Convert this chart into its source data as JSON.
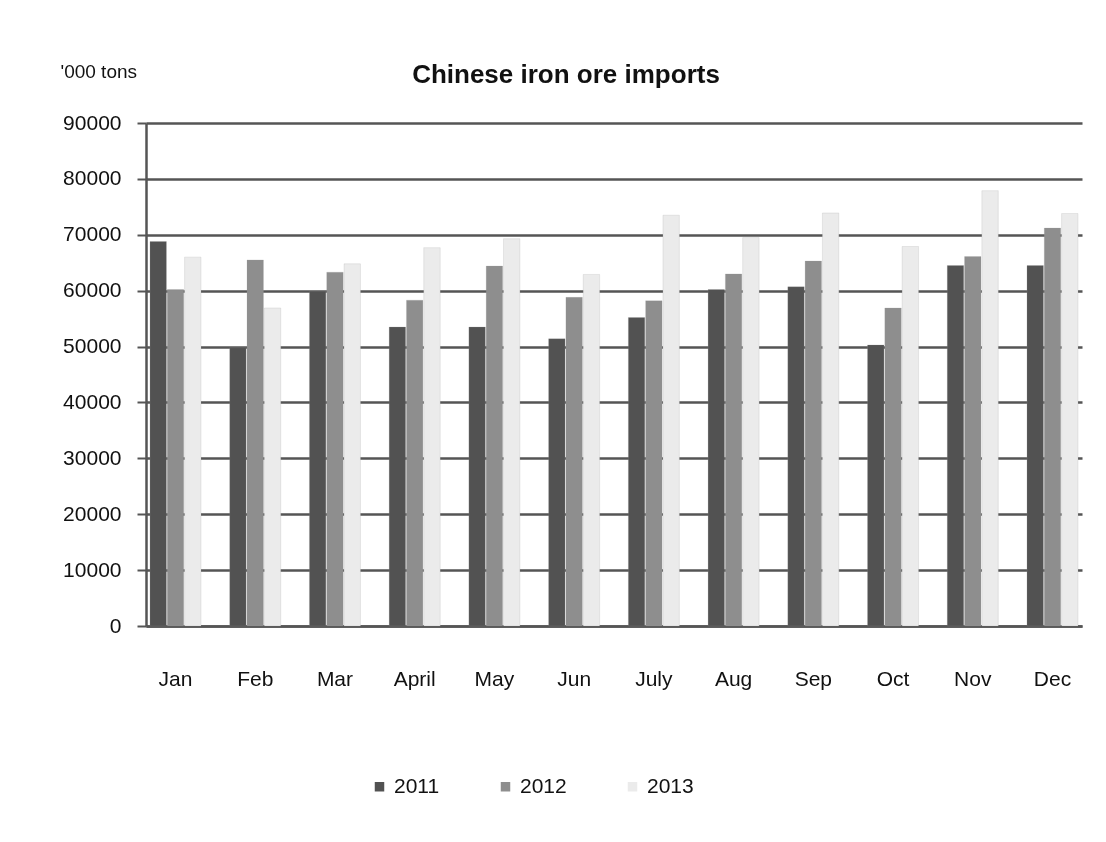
{
  "chart_data": {
    "type": "bar",
    "title": "Chinese iron ore imports",
    "ylabel": "'000 tons",
    "categories": [
      "Jan",
      "Feb",
      "Mar",
      "April",
      "May",
      "Jun",
      "July",
      "Aug",
      "Sep",
      "Oct",
      "Nov",
      "Dec"
    ],
    "series": [
      {
        "name": "2011",
        "color": "#525252",
        "values": [
          68800,
          49800,
          59900,
          53500,
          53500,
          51400,
          55200,
          60200,
          60700,
          50300,
          64500,
          64500
        ]
      },
      {
        "name": "2012",
        "color": "#8e8e8e",
        "values": [
          60200,
          65500,
          63300,
          58300,
          64400,
          58800,
          58200,
          63000,
          65300,
          56900,
          66100,
          71200
        ]
      },
      {
        "name": "2013",
        "color": "#ebebeb",
        "values": [
          66000,
          56900,
          64800,
          67700,
          69300,
          62900,
          73500,
          69500,
          73900,
          67900,
          77900,
          73800
        ]
      }
    ],
    "ylim": [
      0,
      90000
    ],
    "yticks": [
      0,
      10000,
      20000,
      30000,
      40000,
      50000,
      60000,
      70000,
      80000,
      90000
    ],
    "grid": "y",
    "legend": "bottom"
  }
}
